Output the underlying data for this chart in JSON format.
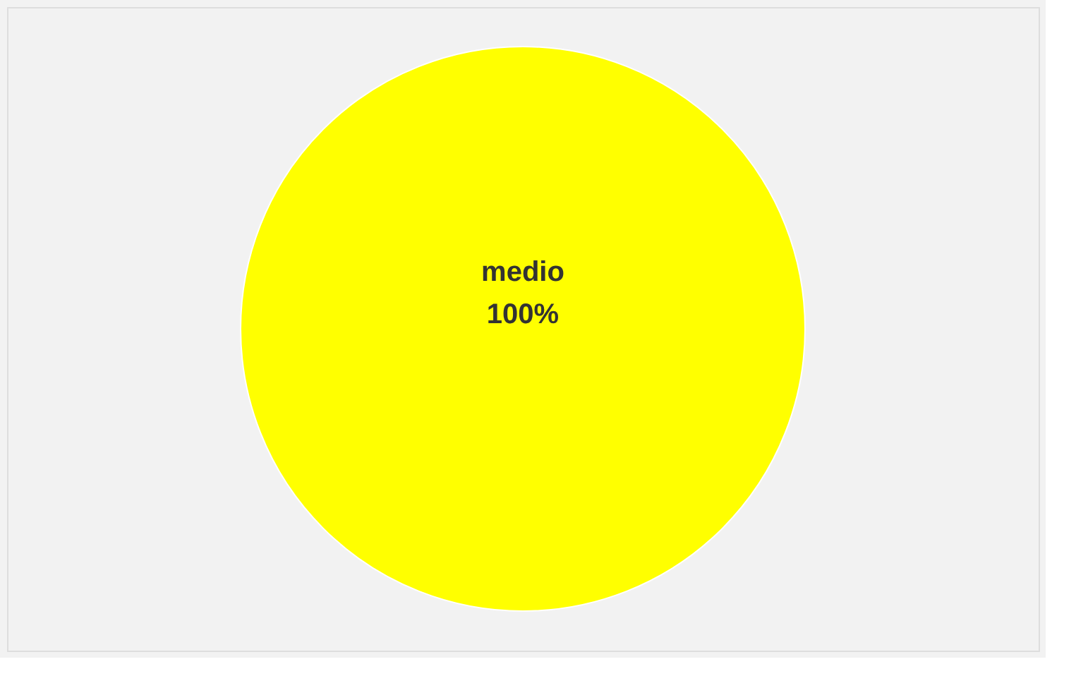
{
  "chart_data": {
    "type": "pie",
    "categories": [
      "medio"
    ],
    "values": [
      100
    ],
    "colors": [
      "#ffff00"
    ],
    "value_labels": [
      "100%"
    ],
    "legend": false
  }
}
